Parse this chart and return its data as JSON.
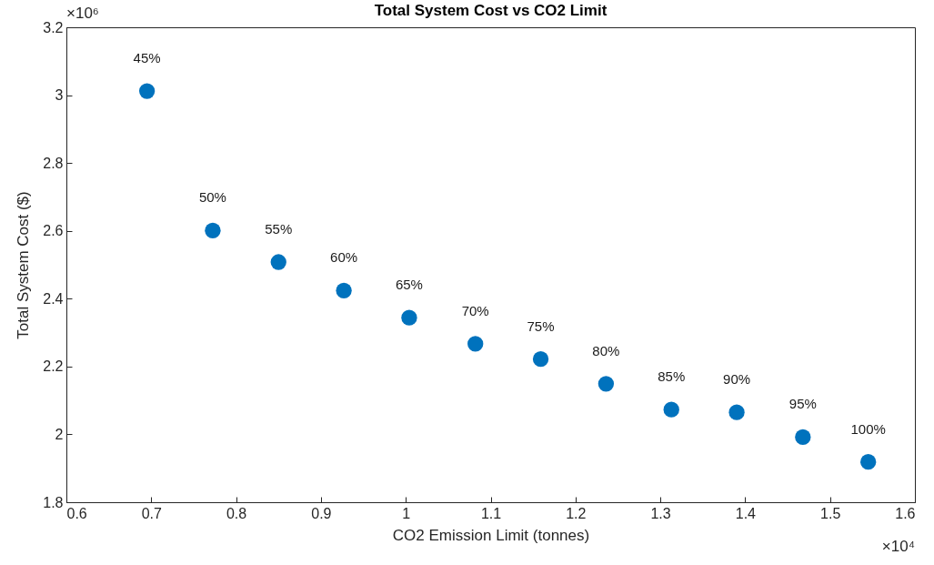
{
  "chart_data": {
    "type": "scatter",
    "title": "Total System Cost vs CO2 Limit",
    "xlabel": "CO2 Emission Limit (tonnes)",
    "ylabel": "Total System Cost ($)",
    "x": [
      0.695,
      0.7725,
      0.85,
      0.927,
      1.004,
      1.082,
      1.159,
      1.236,
      1.313,
      1.39,
      1.468,
      1.545
    ],
    "series": [
      {
        "color": "#0072bd",
        "values": [
          3.012,
          2.601,
          2.508,
          2.424,
          2.344,
          2.267,
          2.222,
          2.149,
          2.073,
          2.065,
          1.992,
          1.919
        ]
      }
    ],
    "marker": "circle",
    "grid": false,
    "xlim": [
      0.6,
      1.6
    ],
    "xticks": [
      0.6,
      0.7,
      0.8,
      0.9,
      1,
      1.1,
      1.2,
      1.3,
      1.4,
      1.5,
      1.6
    ],
    "ylim": [
      1.8,
      3.2
    ],
    "yticks": [
      1.8,
      2,
      2.2,
      2.4,
      2.6,
      2.8,
      3,
      3.2
    ],
    "annotations": [
      "×10⁶",
      "×10⁴",
      {
        "text": "45%",
        "x": 0.695,
        "y": 3.012
      },
      {
        "text": "50%",
        "x": 0.7725,
        "y": 2.601
      },
      {
        "text": "55%",
        "x": 0.85,
        "y": 2.508
      },
      {
        "text": "60%",
        "x": 0.927,
        "y": 2.424
      },
      {
        "text": "65%",
        "x": 1.004,
        "y": 2.344
      },
      {
        "text": "70%",
        "x": 1.082,
        "y": 2.267
      },
      {
        "text": "75%",
        "x": 1.159,
        "y": 2.222
      },
      {
        "text": "80%",
        "x": 1.236,
        "y": 2.149
      },
      {
        "text": "85%",
        "x": 1.313,
        "y": 2.073
      },
      {
        "text": "90%",
        "x": 1.39,
        "y": 2.065
      },
      {
        "text": "95%",
        "x": 1.468,
        "y": 1.992
      },
      {
        "text": "100%",
        "x": 1.545,
        "y": 1.919
      }
    ]
  }
}
